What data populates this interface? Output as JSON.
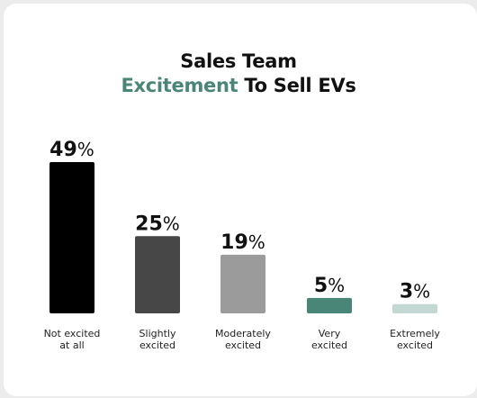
{
  "title": {
    "line1": "Sales Team",
    "line2_accent": "Excitement",
    "line2_rest": " To Sell EVs"
  },
  "colors": {
    "accent": "#4a8677",
    "bars": [
      "#000000",
      "#474747",
      "#9b9b9b",
      "#4a8677",
      "#c3d8d2"
    ]
  },
  "chart_data": {
    "type": "bar",
    "title": "Sales Team Excitement To Sell EVs",
    "categories": [
      [
        "Not excited",
        "at all"
      ],
      [
        "Slightly",
        "excited"
      ],
      [
        "Moderately",
        "excited"
      ],
      [
        "Very",
        "excited"
      ],
      [
        "Extremely",
        "excited"
      ]
    ],
    "values": [
      49,
      25,
      19,
      5,
      3
    ],
    "value_suffix": "%",
    "grid": false,
    "legend": "none"
  }
}
